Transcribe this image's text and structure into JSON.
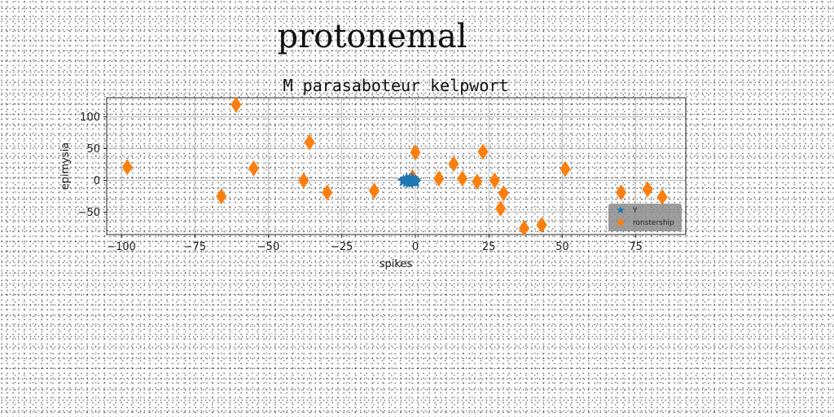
{
  "page": {
    "title": "protonemal"
  },
  "chart_data": {
    "type": "scatter",
    "title": "M parasaboteur kelpwort",
    "xlabel": "spikes",
    "ylabel": "epimysia",
    "xlim": [
      -105,
      92
    ],
    "ylim": [
      -85,
      130
    ],
    "xticks": [
      -100,
      -75,
      -50,
      -25,
      0,
      25,
      50,
      75
    ],
    "yticks": [
      -50,
      0,
      50,
      100
    ],
    "grid": true,
    "legend_position": "lower-right",
    "series": [
      {
        "name": "Y",
        "marker": "star",
        "color": "#1f77b4",
        "x": [
          -4,
          -3,
          -2,
          -1,
          0,
          -3,
          -1,
          -2,
          0,
          -4
        ],
        "y": [
          0,
          -3,
          2,
          -2,
          0,
          3,
          4,
          -4,
          -3,
          -1
        ]
      },
      {
        "name": "ronstership",
        "marker": "diamond",
        "color": "#ff7f0e",
        "x": [
          -98,
          -66,
          -61,
          -55,
          -38,
          -36,
          -30,
          -14,
          -1,
          0,
          8,
          13,
          16,
          21,
          23,
          27,
          29,
          30,
          37,
          43,
          51,
          70,
          79,
          84
        ],
        "y": [
          21,
          -25,
          119,
          19,
          0,
          60,
          -19,
          -16,
          5,
          44,
          3,
          26,
          3,
          -2,
          45,
          0,
          -44,
          -20,
          -75,
          -70,
          18,
          -19,
          -14,
          -26
        ]
      }
    ]
  }
}
